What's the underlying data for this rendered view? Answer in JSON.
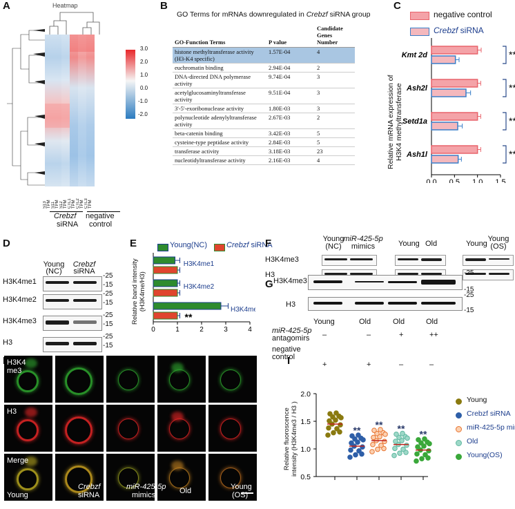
{
  "panels": {
    "A": "A",
    "B": "B",
    "C": "C",
    "D": "D",
    "E": "E",
    "F": "F",
    "G": "G",
    "H": "H",
    "I": "I"
  },
  "heatmap": {
    "title": "Heatmap",
    "columns": [
      "S13 TPM",
      "S11 TPM",
      "S12 TPM",
      "CTL1 TPM",
      "CTL2 TPM",
      "CTL3 TPM"
    ],
    "group1": "Crebzf",
    "group1b": "siRNA",
    "group2": "negative",
    "group2b": "control",
    "scale": [
      "3.0",
      "2.0",
      "1.0",
      "0.0",
      "-1.0",
      "-2.0"
    ]
  },
  "go": {
    "title_a": "GO Terms for mRNAs downregulated in ",
    "title_b": "Crebzf",
    " title_c": "",
    "title_c": " siRNA group",
    "headers": [
      "GO-Function Terms",
      "P value",
      "Candidate Genes Number"
    ],
    "rows": [
      [
        "histone methyltransferase activity (H3-K4 specific)",
        "1.57E-04",
        "4"
      ],
      [
        "euchromatin binding",
        "2.94E-04",
        "2"
      ],
      [
        "DNA-directed DNA polymerase activity",
        "9.74E-04",
        "3"
      ],
      [
        "acetylglucosaminyltransferase activity",
        "9.51E-04",
        "3"
      ],
      [
        "3'-5'-exoribonuclease activity",
        "1.80E-03",
        "3"
      ],
      [
        "polynucleotide adenylyltransferase activity",
        "2.67E-03",
        "2"
      ],
      [
        "beta-catenin binding",
        "3.42E-03",
        "5"
      ],
      [
        "cysteine-type peptidase activity",
        "2.84E-03",
        "5"
      ],
      [
        "transferase activity",
        "3.18E-03",
        "23"
      ],
      [
        "nucleotidyltransferase activity",
        "2.16E-03",
        "4"
      ]
    ]
  },
  "chart_data": [
    {
      "type": "bar",
      "panel": "C",
      "orientation": "horizontal",
      "categories": [
        "Kmt 2d",
        "Ash2l",
        "Setd1a",
        "Ash1l"
      ],
      "series": [
        {
          "name": "negative control",
          "values": [
            1.0,
            1.0,
            1.0,
            1.0
          ],
          "errors": [
            0.08,
            0.07,
            0.07,
            0.07
          ],
          "color": "#f4a3a8",
          "edge": "#e8636b"
        },
        {
          "name": "Crebzf siRNA",
          "values": [
            0.52,
            0.75,
            0.57,
            0.58
          ],
          "errors": [
            0.08,
            0.1,
            0.1,
            0.07
          ],
          "color": "#f4b8bd",
          "edge": "#3a7ec8"
        }
      ],
      "xlim": [
        0,
        1.5
      ],
      "xticks": [
        "0.0",
        "0.5",
        "1.0",
        "1.5"
      ],
      "ylabel": "Relative mRNA expression of H3K4 methyltransferase",
      "significance": [
        "**",
        "**",
        "**",
        "**"
      ]
    },
    {
      "type": "bar",
      "panel": "E",
      "orientation": "horizontal",
      "categories": [
        "H3K4me1",
        "H3K4me2",
        "H3K4me3"
      ],
      "series": [
        {
          "name": "Young(NC)",
          "values": [
            0.9,
            1.0,
            2.8
          ],
          "errors": [
            0.2,
            0.1,
            0.3
          ],
          "color": "#2e8b2e"
        },
        {
          "name": "Crebzf siRNA",
          "values": [
            1.0,
            1.0,
            1.0
          ],
          "errors": [
            0.1,
            0.1,
            0.1
          ],
          "color": "#e0452e"
        }
      ],
      "xlim": [
        0,
        4
      ],
      "xticks": [
        "0",
        "1",
        "2",
        "3",
        "4"
      ],
      "ylabel": "Relative band intensity (H3K4me/H3)",
      "significance": [
        "",
        "",
        "**"
      ]
    },
    {
      "type": "scatter",
      "panel": "I",
      "categories": [
        "Young",
        "Crebzf siRNA",
        "miR-425-5p mimics",
        "Old",
        "Young(OS)"
      ],
      "means": [
        1.45,
        1.05,
        1.15,
        1.08,
        0.98
      ],
      "ylim": [
        0.5,
        2.0
      ],
      "yticks": [
        "0.5",
        "1.0",
        "1.5",
        "2.0"
      ],
      "ylabel": "Relative fluorescence intensity (H3K4me3 / H3 )",
      "significance": [
        "",
        "**",
        "**",
        "**",
        "**"
      ],
      "colors": [
        "#8a7a10",
        "#2e5fa8",
        "#e8732e",
        "#5fb8a0",
        "#3aa83a"
      ]
    }
  ],
  "panelC": {
    "legend1": "negative control",
    "legend2a": "Crebzf",
    "legend2b": " siRNA",
    "ylab1": "Relative mRNA expression of",
    "ylab2": "H3K4 methyltransferase"
  },
  "panelE": {
    "legend1": "Young(NC)",
    "legend2a": "Crebzf",
    "legend2b": " siRNA",
    "ylab1": "Relative band intensity",
    "ylab2": "(H3K4me/H3)"
  },
  "panelD": {
    "col1a": "Young",
    "col1b": "(NC)",
    "col2a": "Crebzf",
    "col2b": "siRNA",
    "rows": [
      "H3K4me1",
      "H3K4me2",
      "H3K4me3",
      "H3"
    ],
    "mw": [
      "-25",
      "-15"
    ]
  },
  "panelF": {
    "col1a": "Young",
    "col1b": "(NC)",
    "col2a": "miR-425-5p",
    "col2b": "mimics",
    "col3": "Young",
    "col4": "Old",
    "col5": "Young",
    "col6a": "Young",
    "col6b": "(OS)",
    "rows": [
      "H3K4me3",
      "H3"
    ]
  },
  "panelG": {
    "rows": [
      "H3K4me3",
      "H3"
    ],
    "mw": [
      "-25",
      "-15"
    ],
    "cols": [
      "Young",
      "Old",
      "Old",
      "Old"
    ],
    "r1label_a": "miR-425-5p",
    "r1label_b": "antagomirs",
    "r1": [
      "–",
      "–",
      "+",
      "++"
    ],
    "r2label_a": "negative",
    "r2label_b": "control",
    "r2": [
      "+",
      "+",
      "–",
      "–"
    ]
  },
  "panelH": {
    "row1": "H3K4",
    "row1b": "me3",
    "row2": "H3",
    "row3": "Merge",
    "cols": [
      "Young",
      "Crebzf",
      "siRNA",
      "miR-425-5p",
      "mimics",
      "Old",
      "Young",
      "(OS)"
    ]
  },
  "panelI": {
    "legend": [
      "Young",
      "Crebzf siRNA",
      "miR-425-5p mimics",
      "Old",
      "Young(OS)"
    ],
    "ylab1": "Relative fluoroscence",
    "ylab2": "intensity (H3K4me3 / H3 )"
  }
}
